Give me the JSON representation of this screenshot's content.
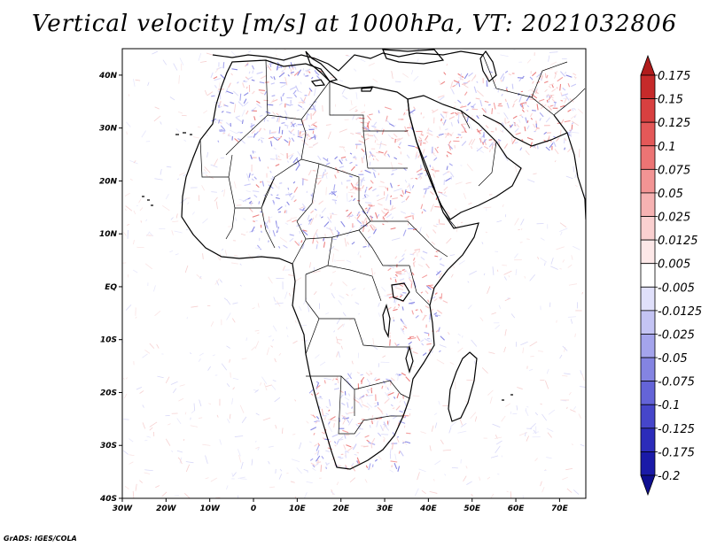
{
  "title": "Vertical velocity [m/s] at 1000hPa, VT: 2021032806",
  "footer": "GrADS: IGES/COLA",
  "map": {
    "lon_range": [
      -30,
      76
    ],
    "lat_range": [
      -40,
      45
    ],
    "lon_ticks": [
      {
        "value": -30,
        "label": "30W"
      },
      {
        "value": -20,
        "label": "20W"
      },
      {
        "value": -10,
        "label": "10W"
      },
      {
        "value": 0,
        "label": "0"
      },
      {
        "value": 10,
        "label": "10E"
      },
      {
        "value": 20,
        "label": "20E"
      },
      {
        "value": 30,
        "label": "30E"
      },
      {
        "value": 40,
        "label": "40E"
      },
      {
        "value": 50,
        "label": "50E"
      },
      {
        "value": 60,
        "label": "60E"
      },
      {
        "value": 70,
        "label": "70E"
      }
    ],
    "lat_ticks": [
      {
        "value": 40,
        "label": "40N"
      },
      {
        "value": 30,
        "label": "30N"
      },
      {
        "value": 20,
        "label": "20N"
      },
      {
        "value": 10,
        "label": "10N"
      },
      {
        "value": 0,
        "label": "EQ"
      },
      {
        "value": -10,
        "label": "10S"
      },
      {
        "value": -20,
        "label": "20S"
      },
      {
        "value": -30,
        "label": "30S"
      },
      {
        "value": -40,
        "label": "40S"
      }
    ]
  },
  "colorbar": {
    "labels": [
      "0.175",
      "0.15",
      "0.125",
      "0.1",
      "0.075",
      "0.05",
      "0.025",
      "0.0125",
      "0.005",
      "-0.005",
      "-0.0125",
      "-0.025",
      "-0.05",
      "-0.075",
      "-0.1",
      "-0.125",
      "-0.175",
      "-0.2"
    ],
    "colors": [
      "#b01c1c",
      "#c62a2a",
      "#d84040",
      "#e45858",
      "#ec7474",
      "#f29494",
      "#f6b2b2",
      "#fad0d0",
      "#fde8e8",
      "#ffffff",
      "#e0e0fb",
      "#c4c4f4",
      "#a4a4ec",
      "#8484e2",
      "#6464d8",
      "#4646ca",
      "#2c2cba",
      "#1a1aa8",
      "#0e0e90"
    ]
  }
}
